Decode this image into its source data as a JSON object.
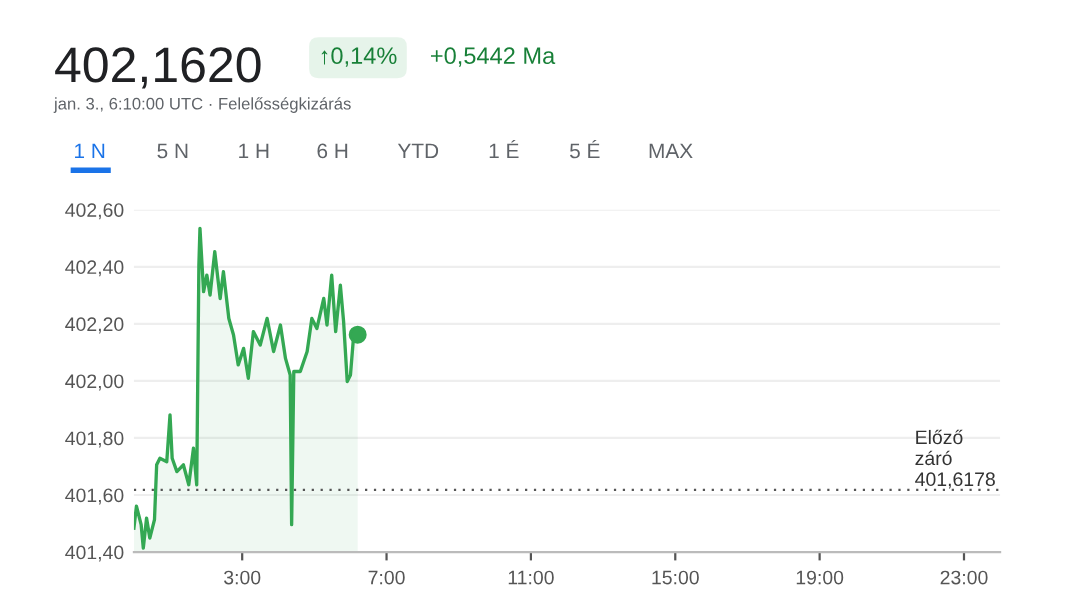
{
  "chart_data": {
    "type": "area",
    "title": "402,1620",
    "annotations": [
      "↑0,14%",
      "+0,5442 Ma",
      "jan. 3., 6:10:00 UTC · Felelősségkizárás",
      "1 N",
      "5 N",
      "1 H",
      "6 H",
      "YTD",
      "1 É",
      "5 É",
      "MAX"
    ],
    "series": [
      {
        "color": "#34a853",
        "x": [
          0.0,
          0.07,
          0.2,
          0.26,
          0.35,
          0.44,
          0.57,
          0.63,
          0.72,
          0.91,
          1.0,
          1.06,
          1.19,
          1.37,
          1.52,
          1.65,
          1.74,
          1.8,
          1.83,
          1.93,
          2.02,
          2.11,
          2.24,
          2.39,
          2.48,
          2.63,
          2.76,
          2.89,
          3.04,
          3.17,
          3.31,
          3.5,
          3.69,
          3.87,
          4.06,
          4.2,
          4.33,
          4.37,
          4.43,
          4.61,
          4.8,
          4.93,
          5.07,
          5.26,
          5.35,
          5.48,
          5.59,
          5.72,
          5.81,
          5.91,
          6.0,
          6.09,
          6.2
        ],
        "values": [
          401.484,
          401.561,
          401.496,
          401.414,
          401.519,
          401.449,
          401.514,
          401.706,
          401.729,
          401.717,
          401.881,
          401.729,
          401.682,
          401.706,
          401.636,
          401.764,
          401.636,
          402.406,
          402.535,
          402.313,
          402.371,
          402.301,
          402.453,
          402.289,
          402.383,
          402.219,
          402.161,
          402.056,
          402.114,
          402.009,
          402.173,
          402.126,
          402.219,
          402.103,
          402.196,
          402.079,
          402.021,
          401.496,
          402.033,
          402.033,
          402.103,
          402.219,
          402.184,
          402.289,
          402.196,
          402.371,
          402.173,
          402.336,
          402.208,
          401.998,
          402.021,
          402.161,
          402.162
        ]
      },
      {
        "type": "scatter",
        "color": "#34a853",
        "x": [
          6.2
        ],
        "values": [
          402.162
        ]
      }
    ],
    "xlim": [
      0,
      24
    ],
    "xticks": [
      {
        "value": 3,
        "label": "3:00"
      },
      {
        "value": 7,
        "label": "7:00"
      },
      {
        "value": 11,
        "label": "11:00"
      },
      {
        "value": 15,
        "label": "15:00"
      },
      {
        "value": 19,
        "label": "19:00"
      },
      {
        "value": 23,
        "label": "23:00"
      }
    ],
    "ylim": [
      401.4,
      402.6
    ],
    "yticks": [
      {
        "value": 401.4,
        "label": "401,40"
      },
      {
        "value": 401.6,
        "label": "401,60"
      },
      {
        "value": 401.8,
        "label": "401,80"
      },
      {
        "value": 402.0,
        "label": "402,00"
      },
      {
        "value": 402.2,
        "label": "402,20"
      },
      {
        "value": 402.4,
        "label": "402,40"
      },
      {
        "value": 402.6,
        "label": "402,60"
      }
    ],
    "grid": "y",
    "ref_lines": [
      {
        "axis": "y",
        "value": 401.6178,
        "label": "Előző\nzáró\n401,6178",
        "color": "#555555",
        "line_style": "dotted"
      }
    ]
  }
}
